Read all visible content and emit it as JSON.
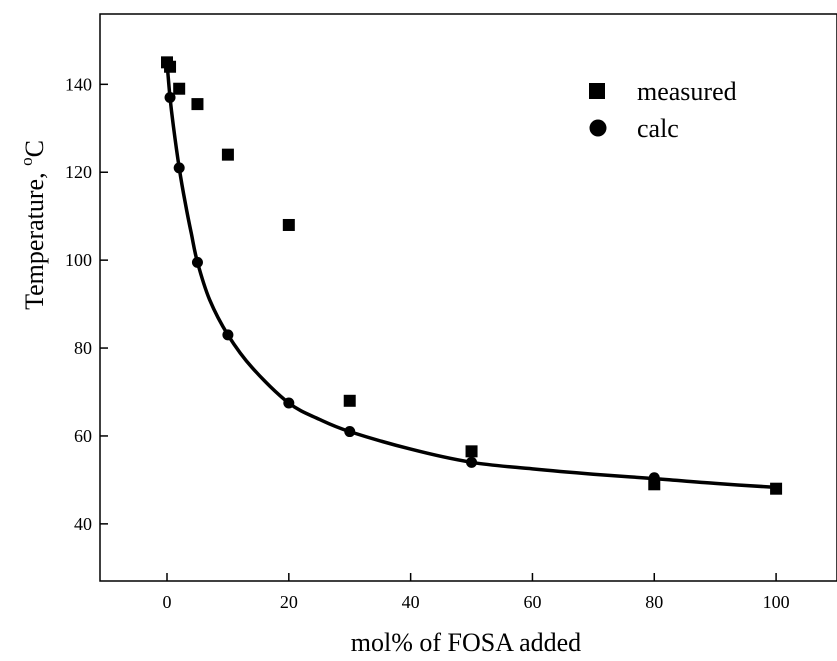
{
  "chart_data": {
    "type": "scatter",
    "title": "",
    "xlabel": "mol% of FOSA added",
    "ylabel": "Temperature, °C",
    "ylabel_parts": {
      "main": "Temperature, ",
      "superscript": "o",
      "unit": "C"
    },
    "xlim": [
      -11,
      110
    ],
    "ylim": [
      27,
      156
    ],
    "xticks": [
      0,
      20,
      40,
      60,
      80,
      100
    ],
    "yticks": [
      40,
      60,
      80,
      100,
      120,
      140
    ],
    "grid": false,
    "legend_position": "top-right",
    "series": [
      {
        "name": "measured",
        "marker": "square",
        "color": "#000000",
        "points": [
          {
            "x": 0,
            "y": 145
          },
          {
            "x": 0.5,
            "y": 144
          },
          {
            "x": 2,
            "y": 139
          },
          {
            "x": 5,
            "y": 135.5
          },
          {
            "x": 10,
            "y": 124
          },
          {
            "x": 20,
            "y": 108
          },
          {
            "x": 30,
            "y": 68
          },
          {
            "x": 50,
            "y": 56.5
          },
          {
            "x": 80,
            "y": 49
          },
          {
            "x": 100,
            "y": 48
          }
        ]
      },
      {
        "name": "calc",
        "marker": "circle",
        "color": "#000000",
        "points": [
          {
            "x": 0,
            "y": 145
          },
          {
            "x": 0.5,
            "y": 137
          },
          {
            "x": 2,
            "y": 121
          },
          {
            "x": 5,
            "y": 99.5
          },
          {
            "x": 10,
            "y": 83
          },
          {
            "x": 20,
            "y": 67.5
          },
          {
            "x": 30,
            "y": 61
          },
          {
            "x": 50,
            "y": 54
          },
          {
            "x": 80,
            "y": 50.5
          },
          {
            "x": 100,
            "y": 48
          }
        ]
      }
    ],
    "fit_curve": {
      "color": "#000000",
      "points": [
        {
          "x": 0,
          "y": 145
        },
        {
          "x": 0.5,
          "y": 137
        },
        {
          "x": 1,
          "y": 131
        },
        {
          "x": 2,
          "y": 121
        },
        {
          "x": 3,
          "y": 113
        },
        {
          "x": 4,
          "y": 106
        },
        {
          "x": 5,
          "y": 99.5
        },
        {
          "x": 7,
          "y": 91
        },
        {
          "x": 10,
          "y": 83
        },
        {
          "x": 14,
          "y": 75.5
        },
        {
          "x": 20,
          "y": 67.5
        },
        {
          "x": 25,
          "y": 63.8
        },
        {
          "x": 30,
          "y": 61
        },
        {
          "x": 40,
          "y": 57
        },
        {
          "x": 50,
          "y": 54
        },
        {
          "x": 60,
          "y": 52.5
        },
        {
          "x": 70,
          "y": 51.3
        },
        {
          "x": 80,
          "y": 50.3
        },
        {
          "x": 90,
          "y": 49.2
        },
        {
          "x": 100,
          "y": 48.3
        }
      ]
    }
  }
}
